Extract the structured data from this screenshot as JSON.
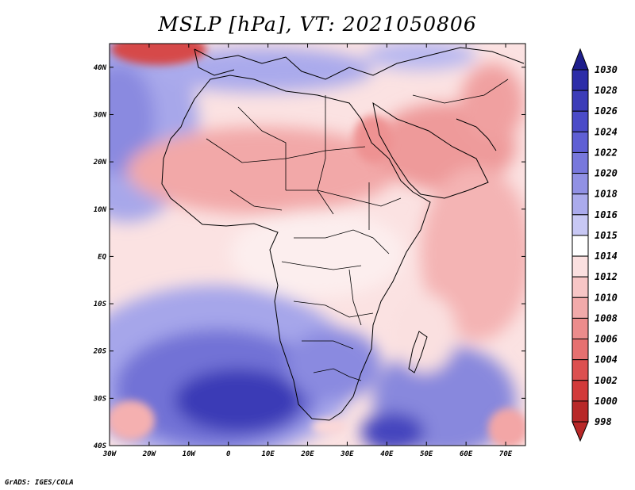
{
  "title": "MSLP [hPa], VT: 2021050806",
  "credit": "GrADS: IGES/COLA",
  "chart_data": {
    "type": "heatmap",
    "variable": "MSLP",
    "units": "hPa",
    "valid_time": "2021050806",
    "lon_range": [
      -30,
      75
    ],
    "lat_range": [
      -40,
      45
    ],
    "x_ticks": [
      "30W",
      "20W",
      "10W",
      "0",
      "10E",
      "20E",
      "30E",
      "40E",
      "50E",
      "60E",
      "70E"
    ],
    "x_tick_values": [
      -30,
      -20,
      -10,
      0,
      10,
      20,
      30,
      40,
      50,
      60,
      70
    ],
    "y_ticks": [
      "40N",
      "30N",
      "20N",
      "10N",
      "EQ",
      "10S",
      "20S",
      "30S",
      "40S"
    ],
    "y_tick_values": [
      40,
      30,
      20,
      10,
      0,
      -10,
      -20,
      -30,
      -40
    ],
    "colorbar": {
      "levels": [
        "1030",
        "1028",
        "1026",
        "1024",
        "1022",
        "1020",
        "1018",
        "1016",
        "1015",
        "1014",
        "1012",
        "1010",
        "1008",
        "1006",
        "1004",
        "1002",
        "1000",
        "998"
      ],
      "colors": [
        "#1e1e8c",
        "#2d2da8",
        "#3c3cb8",
        "#4b4bc8",
        "#5f5fd4",
        "#7878dc",
        "#9191e4",
        "#ababec",
        "#c8c8f4",
        "#ffffff",
        "#fbe0e0",
        "#f7c6c6",
        "#f2aaaa",
        "#ec8c8c",
        "#e67070",
        "#dc5050",
        "#d23a3a",
        "#b82828"
      ]
    },
    "pressure_centers": [
      {
        "label": "high",
        "lon": 2,
        "lat": -31,
        "value": 1029
      },
      {
        "label": "high",
        "lon": 40,
        "lat": -38,
        "value": 1026
      },
      {
        "label": "high",
        "lon": -28,
        "lat": 32,
        "value": 1022
      },
      {
        "label": "low",
        "lon": -22,
        "lat": 43,
        "value": 1004
      },
      {
        "label": "low",
        "lon": 57,
        "lat": 23,
        "value": 1008
      }
    ]
  }
}
